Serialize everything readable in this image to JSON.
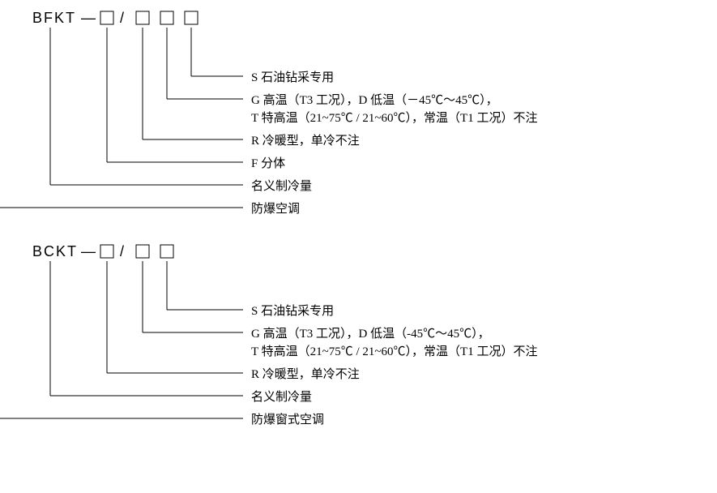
{
  "background_color": "#ffffff",
  "stroke_color": "#000000",
  "stroke_width": 1,
  "box_size": 16,
  "code_fontsize": 18,
  "desc_fontsize": 15,
  "diagram1": {
    "prefix": "BFKT",
    "separator": "—",
    "slash": "/",
    "num_boxes_before_slash": 1,
    "num_boxes_after_slash": 3,
    "descriptions": [
      {
        "lines": [
          "S 石油钻采专用"
        ]
      },
      {
        "lines": [
          "G 高温（T3 工况），D 低温（－45℃～45℃），",
          "T 特高温（21~75℃ / 21~60℃），常温（T1 工况）不注"
        ]
      },
      {
        "lines": [
          "R 冷暖型，单冷不注"
        ]
      },
      {
        "lines": [
          "F 分体"
        ]
      },
      {
        "lines": [
          "名义制冷量"
        ]
      },
      {
        "lines": [
          "防爆空调"
        ]
      }
    ]
  },
  "diagram2": {
    "prefix": "BCKT",
    "separator": "—",
    "slash": "/",
    "num_boxes_before_slash": 1,
    "num_boxes_after_slash": 2,
    "descriptions": [
      {
        "lines": [
          "S 石油钻采专用"
        ]
      },
      {
        "lines": [
          "G 高温（T3 工况），D 低温（-45℃～45℃），",
          "T 特高温（21~75℃ / 21~60℃），常温（T1 工况）不注"
        ]
      },
      {
        "lines": [
          "R 冷暖型，单冷不注"
        ]
      },
      {
        "lines": [
          "名义制冷量"
        ]
      },
      {
        "lines": [
          "防爆窗式空调"
        ]
      }
    ]
  }
}
